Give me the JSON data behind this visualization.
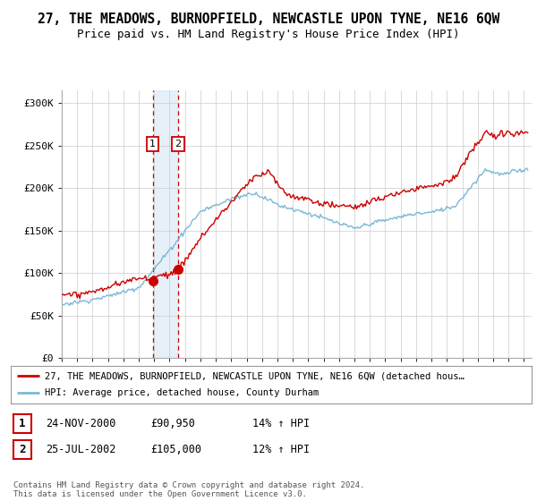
{
  "title": "27, THE MEADOWS, BURNOPFIELD, NEWCASTLE UPON TYNE, NE16 6QW",
  "subtitle": "Price paid vs. HM Land Registry's House Price Index (HPI)",
  "ylabel_ticks": [
    "£0",
    "£50K",
    "£100K",
    "£150K",
    "£200K",
    "£250K",
    "£300K"
  ],
  "ytick_values": [
    0,
    50000,
    100000,
    150000,
    200000,
    250000,
    300000
  ],
  "ylim": [
    0,
    315000
  ],
  "xlim_start": 1995.0,
  "xlim_end": 2025.5,
  "sale1_date": 2000.9,
  "sale1_price": 90950,
  "sale1_label": "1",
  "sale2_date": 2002.56,
  "sale2_price": 105000,
  "sale2_label": "2",
  "legend_line1": "27, THE MEADOWS, BURNOPFIELD, NEWCASTLE UPON TYNE, NE16 6QW (detached hous…",
  "legend_line2": "HPI: Average price, detached house, County Durham",
  "table_row1": [
    "1",
    "24-NOV-2000",
    "£90,950",
    "14% ↑ HPI"
  ],
  "table_row2": [
    "2",
    "25-JUL-2002",
    "£105,000",
    "12% ↑ HPI"
  ],
  "footer": "Contains HM Land Registry data © Crown copyright and database right 2024.\nThis data is licensed under the Open Government Licence v3.0.",
  "hpi_color": "#7bb8d8",
  "price_color": "#cc0000",
  "sale_dot_color": "#cc0000",
  "vline_color": "#cc0000",
  "shading_color": "#daeaf7",
  "background_color": "#ffffff",
  "grid_color": "#cccccc",
  "title_fontsize": 10.5,
  "subtitle_fontsize": 9
}
